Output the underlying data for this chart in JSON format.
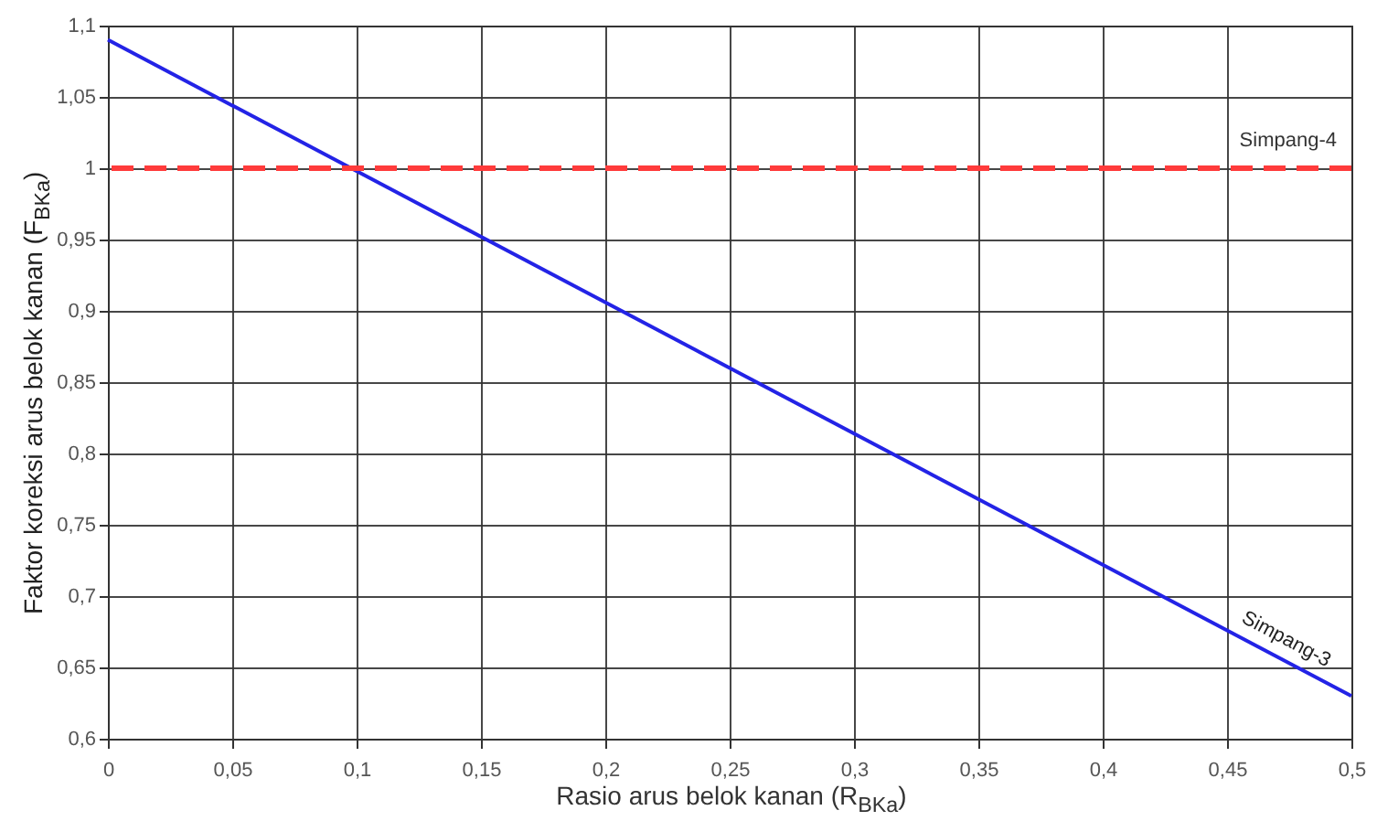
{
  "chart_data": {
    "type": "line",
    "xlabel": "Rasio arus belok kanan (R$_{BKa}$)",
    "ylabel": "Faktor koreksi arus belok kanan (F$_{BKa}$)",
    "x": [
      0,
      0.5
    ],
    "series": [
      {
        "color": "#2323e6",
        "values": [
          1.09,
          0.63
        ]
      }
    ],
    "xlim": [
      0,
      0.5
    ],
    "xticks": [
      0,
      {
        "value": 0.05,
        "label": "0,05"
      },
      {
        "value": 0.1,
        "label": "0,1"
      },
      {
        "value": 0.15,
        "label": "0,15"
      },
      {
        "value": 0.2,
        "label": "0,2"
      },
      {
        "value": 0.25,
        "label": "0,25"
      },
      {
        "value": 0.3,
        "label": "0,3"
      },
      {
        "value": 0.35,
        "label": "0,35"
      },
      {
        "value": 0.4,
        "label": "0,4"
      },
      {
        "value": 0.45,
        "label": "0,45"
      },
      {
        "value": 0.5,
        "label": "0,5"
      }
    ],
    "ylim": [
      0.6,
      1.1
    ],
    "yticks": [
      {
        "value": 0.6,
        "label": "0,6"
      },
      {
        "value": 0.65,
        "label": "0,65"
      },
      {
        "value": 0.7,
        "label": "0,7"
      },
      {
        "value": 0.75,
        "label": "0,75"
      },
      {
        "value": 0.8,
        "label": "0,8"
      },
      {
        "value": 0.85,
        "label": "0,85"
      },
      {
        "value": 0.9,
        "label": "0,9"
      },
      {
        "value": 0.95,
        "label": "0,95"
      },
      1,
      {
        "value": 1.05,
        "label": "1,05"
      },
      {
        "value": 1.1,
        "label": "1,1"
      }
    ],
    "ref_lines": [
      {
        "axis": "y",
        "value": 1,
        "label": "Simpang-4",
        "color": "#ff3b3b",
        "line_style": "dashed"
      }
    ],
    "annotations": [
      {
        "text": "Simpang-3",
        "x": 0.47,
        "y": 0.657
      }
    ],
    "grid": true,
    "marker": "none",
    "line_style": "solid"
  }
}
